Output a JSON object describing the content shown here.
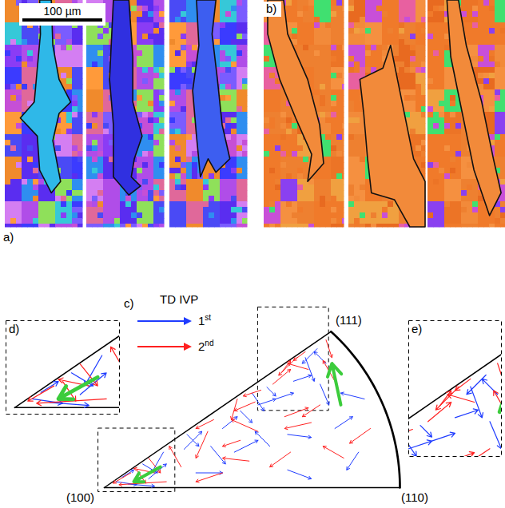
{
  "panels": [
    {
      "label": "a)",
      "scale_bar": "100 µm"
    },
    {
      "label": "b)"
    }
  ],
  "chart_data": {
    "type": "arrow",
    "label": "c)",
    "legend_title": "TD IVP",
    "legend": "top-left",
    "tick_labels": false,
    "vertex_labels": [
      "(100)",
      "(110)",
      "(111)"
    ],
    "insets": [
      "d)",
      "e)"
    ],
    "series": [
      {
        "name": "1st",
        "color": "#1f3cff",
        "arrows": [
          [
            0.72,
            0.47,
            0.67,
            0.42
          ],
          [
            0.68,
            0.44,
            0.71,
            0.36
          ],
          [
            0.75,
            0.42,
            0.71,
            0.46
          ],
          [
            0.64,
            0.36,
            0.7,
            0.38
          ],
          [
            0.73,
            0.35,
            0.76,
            0.28
          ],
          [
            0.58,
            0.3,
            0.64,
            0.32
          ],
          [
            0.52,
            0.28,
            0.58,
            0.3
          ],
          [
            0.5,
            0.32,
            0.54,
            0.26
          ],
          [
            0.55,
            0.34,
            0.58,
            0.31
          ],
          [
            0.46,
            0.26,
            0.5,
            0.22
          ],
          [
            0.4,
            0.2,
            0.45,
            0.24
          ],
          [
            0.44,
            0.12,
            0.52,
            0.16
          ],
          [
            0.36,
            0.14,
            0.41,
            0.08
          ],
          [
            0.31,
            0.05,
            0.4,
            0.05
          ],
          [
            0.56,
            0.14,
            0.51,
            0.19
          ],
          [
            0.62,
            0.18,
            0.7,
            0.17
          ],
          [
            0.28,
            0.18,
            0.32,
            0.14
          ],
          [
            0.27,
            0.13,
            0.33,
            0.19
          ],
          [
            0.13,
            0.08,
            0.18,
            0.05
          ],
          [
            0.04,
            0.02,
            0.11,
            0.01
          ],
          [
            0.08,
            0.012,
            0.17,
            0.005
          ],
          [
            0.2,
            0.12,
            0.16,
            0.05
          ],
          [
            0.62,
            0.06,
            0.7,
            0.03
          ],
          [
            0.78,
            0.2,
            0.84,
            0.24
          ],
          [
            0.86,
            0.12,
            0.82,
            0.06
          ],
          [
            0.88,
            0.3,
            0.8,
            0.32
          ],
          [
            0.15,
            0.03,
            0.21,
            0.08
          ],
          [
            0.06,
            0.035,
            0.1,
            0.06
          ]
        ]
      },
      {
        "name": "2nd",
        "color": "#ff2020",
        "arrows": [
          [
            0.75,
            0.5,
            0.77,
            0.44
          ],
          [
            0.69,
            0.4,
            0.62,
            0.42
          ],
          [
            0.65,
            0.44,
            0.59,
            0.38
          ],
          [
            0.78,
            0.36,
            0.74,
            0.43
          ],
          [
            0.61,
            0.24,
            0.69,
            0.27
          ],
          [
            0.57,
            0.35,
            0.63,
            0.4
          ],
          [
            0.51,
            0.29,
            0.44,
            0.26
          ],
          [
            0.53,
            0.33,
            0.47,
            0.31
          ],
          [
            0.52,
            0.19,
            0.43,
            0.23
          ],
          [
            0.35,
            0.19,
            0.31,
            0.1
          ],
          [
            0.26,
            0.07,
            0.22,
            0.14
          ],
          [
            0.63,
            0.12,
            0.56,
            0.07
          ],
          [
            0.7,
            0.22,
            0.61,
            0.2
          ],
          [
            0.49,
            0.09,
            0.4,
            0.1
          ],
          [
            0.37,
            0.23,
            0.31,
            0.2
          ],
          [
            0.15,
            0.1,
            0.19,
            0.05
          ],
          [
            0.09,
            0.05,
            0.03,
            0.015
          ],
          [
            0.21,
            0.02,
            0.05,
            0.01
          ],
          [
            0.17,
            0.05,
            0.1,
            0.065
          ],
          [
            0.4,
            0.05,
            0.31,
            0.02
          ],
          [
            0.68,
            0.46,
            0.64,
            0.43
          ],
          [
            0.6,
            0.39,
            0.63,
            0.43
          ],
          [
            0.73,
            0.28,
            0.67,
            0.24
          ],
          [
            0.45,
            0.3,
            0.43,
            0.23
          ],
          [
            0.11,
            0.06,
            0.14,
            0.015
          ],
          [
            0.9,
            0.2,
            0.83,
            0.15
          ],
          [
            0.81,
            0.1,
            0.74,
            0.14
          ],
          [
            0.46,
            0.16,
            0.4,
            0.14
          ]
        ]
      }
    ],
    "highlight": {
      "color": "#3ccc3c",
      "arrows": [
        [
          0.8,
          0.28,
          0.77,
          0.42
        ],
        [
          0.19,
          0.07,
          0.1,
          0.02
        ]
      ]
    }
  }
}
